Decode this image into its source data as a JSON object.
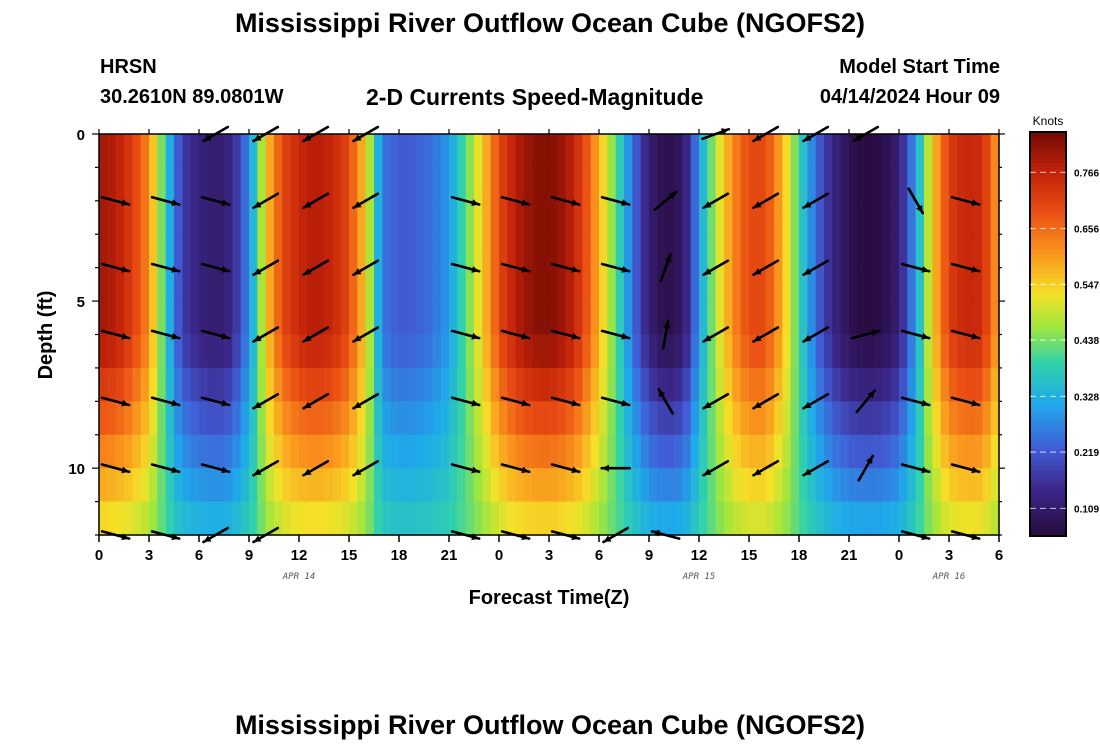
{
  "title": "Mississippi River Outflow Ocean Cube (NGOFS2)",
  "footer_title": "Mississippi River Outflow Ocean Cube (NGOFS2)",
  "station": {
    "name": "HRSN",
    "coords": "30.2610N  89.0801W"
  },
  "subtitle": "2-D Currents Speed-Magnitude",
  "model": {
    "label": "Model Start Time",
    "time": "04/14/2024 Hour 09"
  },
  "colors": {
    "arrow": "#000000",
    "frame": "#000000"
  },
  "chart_data": {
    "type": "heatmap",
    "title": "2-D Currents Speed-Magnitude",
    "xlabel": "Forecast Time(Z)",
    "ylabel": "Depth (ft)",
    "xlim": [
      0,
      54
    ],
    "ylim": [
      12,
      0
    ],
    "x_ticks": [
      0,
      3,
      6,
      9,
      12,
      15,
      18,
      21,
      24,
      27,
      30,
      33,
      36,
      39,
      42,
      45,
      48,
      51,
      54
    ],
    "x_tick_labels": [
      "0",
      "3",
      "6",
      "9",
      "12",
      "15",
      "18",
      "21",
      "0",
      "3",
      "6",
      "9",
      "12",
      "15",
      "18",
      "21",
      "0",
      "3",
      "6"
    ],
    "y_ticks": [
      0,
      5,
      10
    ],
    "y_tick_labels": [
      "0",
      "5",
      "10"
    ],
    "date_labels": [
      {
        "x": 12,
        "text": "APR 14"
      },
      {
        "x": 36,
        "text": "APR 15"
      },
      {
        "x": 51,
        "text": "APR 16"
      }
    ],
    "colorbar": {
      "label": "Knots",
      "min": 0.055,
      "max": 0.845,
      "ticks": [
        "0.766",
        "0.656",
        "0.547",
        "0.438",
        "0.328",
        "0.219",
        "0.109"
      ],
      "tick_values": [
        0.766,
        0.656,
        0.547,
        0.438,
        0.328,
        0.219,
        0.109
      ]
    },
    "speed_profile_times": [
      0,
      1,
      2,
      3,
      3.5,
      4,
      4.5,
      5,
      6,
      7,
      8,
      9,
      9.5,
      10,
      11,
      12,
      13,
      14,
      15,
      16,
      16.5,
      17,
      18,
      19,
      20,
      21,
      22,
      23,
      24,
      25,
      26,
      27,
      28,
      29,
      30,
      31,
      32,
      33,
      34,
      35,
      35.5,
      36,
      37,
      38,
      39,
      40,
      41,
      42,
      43,
      44,
      45,
      46,
      47,
      48,
      49,
      50,
      51,
      52,
      53,
      54
    ],
    "speed_surface_knots": [
      0.8,
      0.78,
      0.72,
      0.62,
      0.5,
      0.38,
      0.26,
      0.18,
      0.13,
      0.11,
      0.14,
      0.28,
      0.4,
      0.55,
      0.7,
      0.76,
      0.78,
      0.76,
      0.7,
      0.55,
      0.4,
      0.26,
      0.22,
      0.23,
      0.25,
      0.3,
      0.42,
      0.55,
      0.7,
      0.78,
      0.82,
      0.83,
      0.8,
      0.72,
      0.58,
      0.42,
      0.25,
      0.12,
      0.07,
      0.1,
      0.18,
      0.3,
      0.48,
      0.62,
      0.7,
      0.7,
      0.58,
      0.4,
      0.24,
      0.14,
      0.08,
      0.06,
      0.07,
      0.12,
      0.3,
      0.55,
      0.72,
      0.76,
      0.75,
      0.58
    ],
    "vectors": {
      "rows_depth_ft": [
        0,
        2,
        4,
        6,
        8,
        10,
        12
      ],
      "columns_time": [
        1,
        4,
        7,
        10,
        13,
        16,
        19,
        22,
        25,
        28,
        31,
        34,
        37,
        40,
        43,
        46,
        49,
        52
      ],
      "angles_deg": [
        [
          null,
          null,
          -150,
          -150,
          -150,
          -150,
          null,
          null,
          null,
          null,
          null,
          null,
          20,
          -150,
          -150,
          -150,
          null,
          null
        ],
        [
          -15,
          -15,
          -15,
          -150,
          -150,
          -150,
          null,
          -15,
          -15,
          -15,
          -15,
          40,
          -150,
          -150,
          -150,
          null,
          -60,
          -15
        ],
        [
          -15,
          -15,
          -15,
          -150,
          -150,
          -150,
          null,
          -15,
          -15,
          -15,
          -15,
          70,
          -150,
          -150,
          -150,
          null,
          -15,
          -15
        ],
        [
          -15,
          -15,
          -15,
          -150,
          -150,
          -150,
          null,
          -15,
          -15,
          -15,
          -15,
          80,
          -150,
          -150,
          -150,
          15,
          -15,
          -15
        ],
        [
          -15,
          -15,
          -15,
          -150,
          -150,
          -150,
          null,
          -15,
          -15,
          -15,
          -15,
          120,
          -150,
          -150,
          -150,
          50,
          -15,
          -15
        ],
        [
          -15,
          -15,
          -15,
          -150,
          -150,
          -150,
          null,
          -15,
          -15,
          -15,
          180,
          null,
          -150,
          -150,
          -150,
          60,
          -15,
          -15
        ],
        [
          -15,
          -15,
          -150,
          -150,
          null,
          null,
          null,
          -15,
          -15,
          -15,
          -150,
          165,
          null,
          null,
          null,
          null,
          -15,
          -15
        ]
      ]
    }
  }
}
